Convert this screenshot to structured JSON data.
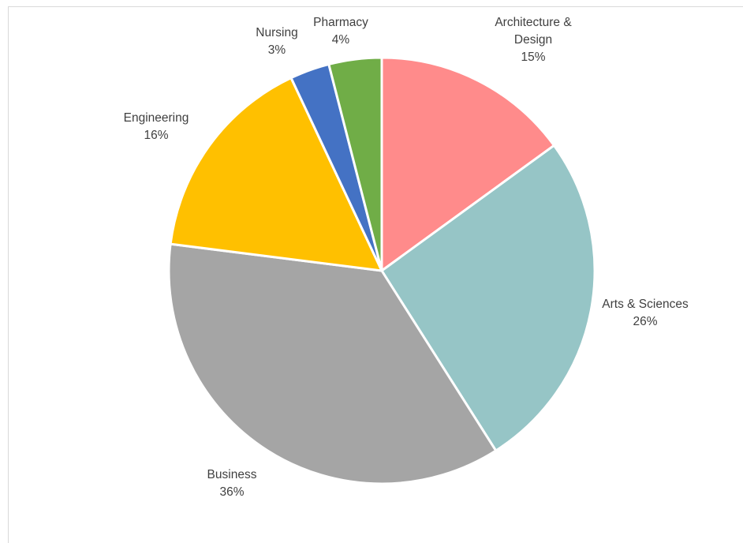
{
  "chart_data": {
    "type": "pie",
    "title": "",
    "start_angle_deg": 0,
    "direction": "clockwise",
    "legend": "none",
    "label_format": "category-and-percent",
    "slices": [
      {
        "category": "Architecture & Design",
        "label_lines": [
          "Architecture &",
          "Design"
        ],
        "value": 15,
        "value_label": "15%",
        "color": "#FF8B8B"
      },
      {
        "category": "Arts & Sciences",
        "label_lines": [
          "Arts & Sciences"
        ],
        "value": 26,
        "value_label": "26%",
        "color": "#96C5C6"
      },
      {
        "category": "Business",
        "label_lines": [
          "Business"
        ],
        "value": 36,
        "value_label": "36%",
        "color": "#A5A5A5"
      },
      {
        "category": "Engineering",
        "label_lines": [
          "Engineering"
        ],
        "value": 16,
        "value_label": "16%",
        "color": "#FFC000"
      },
      {
        "category": "Nursing",
        "label_lines": [
          "Nursing"
        ],
        "value": 3,
        "value_label": "3%",
        "color": "#4472C4"
      },
      {
        "category": "Pharmacy",
        "label_lines": [
          "Pharmacy"
        ],
        "value": 4,
        "value_label": "4%",
        "color": "#70AD47"
      }
    ]
  }
}
